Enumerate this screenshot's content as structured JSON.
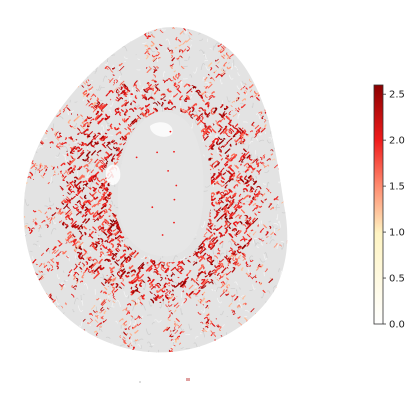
{
  "chart_data": {
    "type": "heatmap",
    "title": "",
    "xlabel": "",
    "ylabel": "",
    "axes_visible": false,
    "colormap": {
      "name": "white-yellow-red",
      "stops": [
        {
          "value": 0.0,
          "color": "#ffffff"
        },
        {
          "value": 1.0,
          "color": "#fff4c2"
        },
        {
          "value": 1.5,
          "color": "#ff8a6e"
        },
        {
          "value": 2.0,
          "color": "#ef1b1b"
        },
        {
          "value": 2.6,
          "color": "#8b0000"
        }
      ]
    },
    "colorbar": {
      "position": "right",
      "range": [
        0.0,
        2.6
      ],
      "ticks": [
        0.0,
        0.5,
        1.0,
        1.5,
        2.0,
        2.5
      ],
      "tick_labels": [
        "0.0",
        "0.5",
        "1.0",
        "1.5",
        "2.0",
        "2.5"
      ]
    },
    "background_color": "#e3e3e3",
    "regions": [
      {
        "name": "outer ring",
        "value_level": "mixed (mostly 0.0, streaks up to 2.0)"
      },
      {
        "name": "inner ring",
        "value_level": "high (≈2.0–2.6)"
      },
      {
        "name": "central core",
        "value_level": "0.0"
      }
    ]
  }
}
